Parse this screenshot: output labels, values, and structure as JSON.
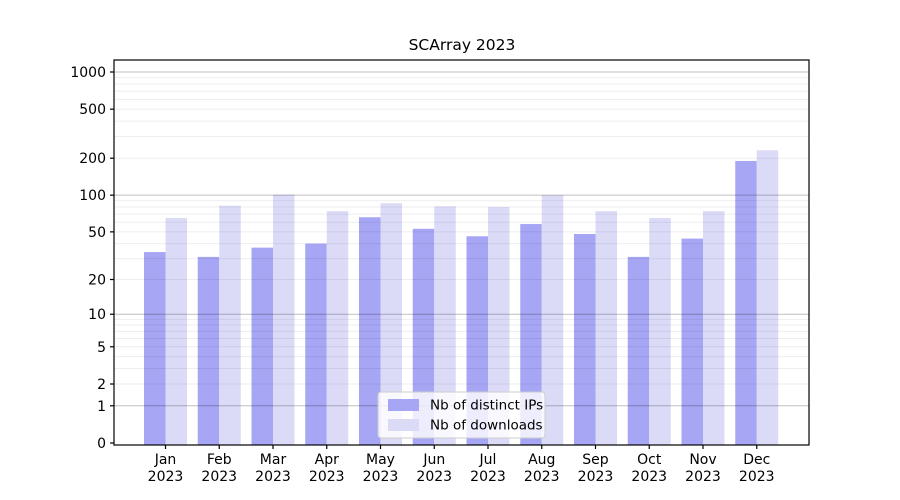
{
  "chart_data": {
    "type": "bar",
    "title": "SCArray 2023",
    "scale": "log1p",
    "categories": [
      {
        "month": "Jan",
        "year": "2023"
      },
      {
        "month": "Feb",
        "year": "2023"
      },
      {
        "month": "Mar",
        "year": "2023"
      },
      {
        "month": "Apr",
        "year": "2023"
      },
      {
        "month": "May",
        "year": "2023"
      },
      {
        "month": "Jun",
        "year": "2023"
      },
      {
        "month": "Jul",
        "year": "2023"
      },
      {
        "month": "Aug",
        "year": "2023"
      },
      {
        "month": "Sep",
        "year": "2023"
      },
      {
        "month": "Oct",
        "year": "2023"
      },
      {
        "month": "Nov",
        "year": "2023"
      },
      {
        "month": "Dec",
        "year": "2023"
      }
    ],
    "series": [
      {
        "name": "Nb of distinct IPs",
        "values": [
          34,
          31,
          37,
          40,
          66,
          53,
          46,
          58,
          48,
          31,
          44,
          190
        ],
        "color": "#a6a6f5"
      },
      {
        "name": "Nb of downloads",
        "values": [
          65,
          82,
          101,
          74,
          86,
          81,
          80,
          100,
          74,
          65,
          74,
          232
        ],
        "color": "#dbdbf8"
      }
    ],
    "yticks": [
      0,
      1,
      2,
      5,
      10,
      20,
      50,
      100,
      200,
      500,
      1000
    ],
    "ylim": [
      0,
      1250
    ],
    "grid": "on",
    "legend_position": "bottom-center-inside"
  }
}
